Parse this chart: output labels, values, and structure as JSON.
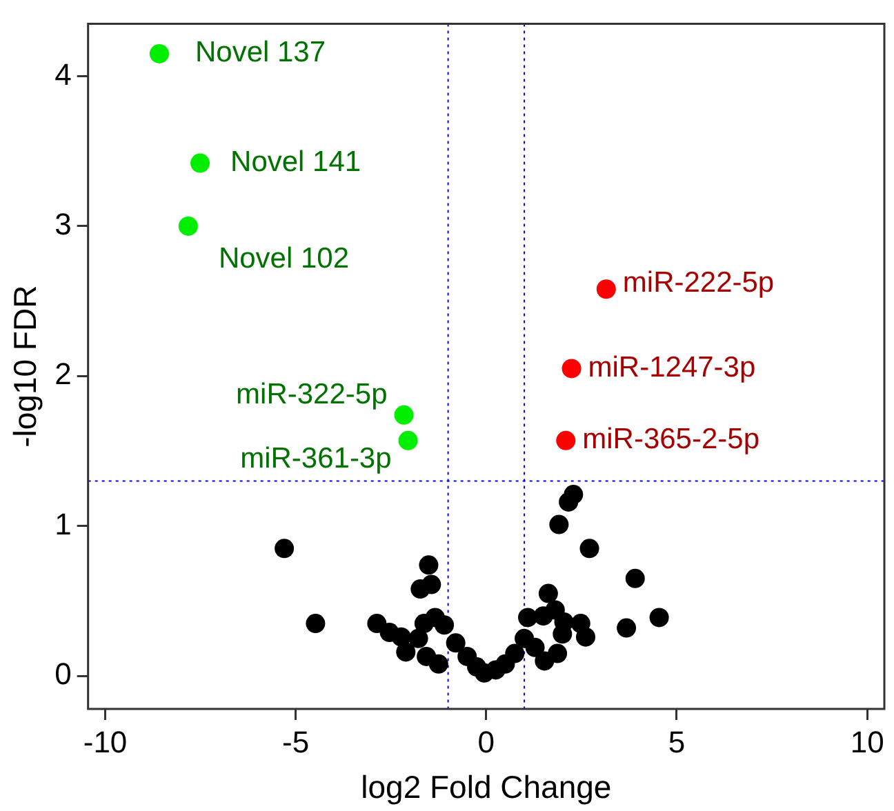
{
  "chart_data": {
    "type": "scatter",
    "xlabel": "log2 Fold Change",
    "ylabel": "-log10 FDR",
    "xlim": [
      -10.45,
      10.45
    ],
    "ylim": [
      -0.22,
      4.35
    ],
    "xticks": [
      -10,
      -5,
      0,
      5,
      10
    ],
    "yticks": [
      0,
      1,
      2,
      3,
      4
    ],
    "grid": false,
    "legend": false,
    "marker": "circle",
    "series": [
      {
        "color": "#000000",
        "x": [
          -5.3,
          -4.48,
          -2.87,
          -2.54,
          -2.23,
          -2.11,
          -1.78,
          -1.51,
          -1.44,
          -1.73,
          -1.63,
          -1.34,
          -1.57,
          -1.25,
          -1.1,
          -0.8,
          -0.5,
          -0.25,
          -0.05,
          0.25,
          0.5,
          0.75,
          1.0,
          1.09,
          1.28,
          1.5,
          1.53,
          1.63,
          1.81,
          1.87,
          2.0,
          2.04,
          2.48,
          2.61,
          1.91,
          2.16,
          2.29,
          2.71,
          3.68,
          3.91,
          4.54
        ],
        "values": [
          0.85,
          0.35,
          0.35,
          0.29,
          0.26,
          0.16,
          0.25,
          0.74,
          0.61,
          0.58,
          0.35,
          0.39,
          0.13,
          0.08,
          0.34,
          0.22,
          0.13,
          0.06,
          0.02,
          0.04,
          0.08,
          0.15,
          0.25,
          0.39,
          0.19,
          0.4,
          0.1,
          0.55,
          0.44,
          0.15,
          0.28,
          0.36,
          0.35,
          0.26,
          1.01,
          1.16,
          1.21,
          0.85,
          0.32,
          0.65,
          0.39
        ]
      },
      {
        "color": "#00ee00",
        "x": [
          -8.58,
          -7.51,
          -7.82,
          -2.16,
          -2.05
        ],
        "values": [
          4.15,
          3.42,
          3.0,
          1.74,
          1.57
        ]
      },
      {
        "color": "#ff0000",
        "x": [
          3.15,
          2.24,
          2.09
        ],
        "values": [
          2.58,
          2.05,
          1.57
        ]
      }
    ],
    "ref_lines": [
      {
        "axis": "x",
        "value": -1,
        "color": "#0000ff",
        "line_style": "dotted"
      },
      {
        "axis": "x",
        "value": 1,
        "color": "#0000ff",
        "line_style": "dotted"
      },
      {
        "axis": "y",
        "value": 1.3,
        "color": "#0000ff",
        "line_style": "dotted"
      }
    ],
    "annotations": [
      {
        "text": "Novel 137",
        "x": -8.58,
        "y": 4.15
      },
      {
        "text": "Novel 141",
        "x": -7.51,
        "y": 3.42
      },
      {
        "text": "Novel 102",
        "x": -7.82,
        "y": 3.0
      },
      {
        "text": "miR-322-5p",
        "x": -2.16,
        "y": 1.74
      },
      {
        "text": "miR-361-3p",
        "x": -2.05,
        "y": 1.57
      },
      {
        "text": "miR-222-5p",
        "x": 3.15,
        "y": 2.58
      },
      {
        "text": "miR-1247-3p",
        "x": 2.24,
        "y": 2.05
      },
      {
        "text": "miR-365-2-5p",
        "x": 2.09,
        "y": 1.57
      }
    ]
  }
}
